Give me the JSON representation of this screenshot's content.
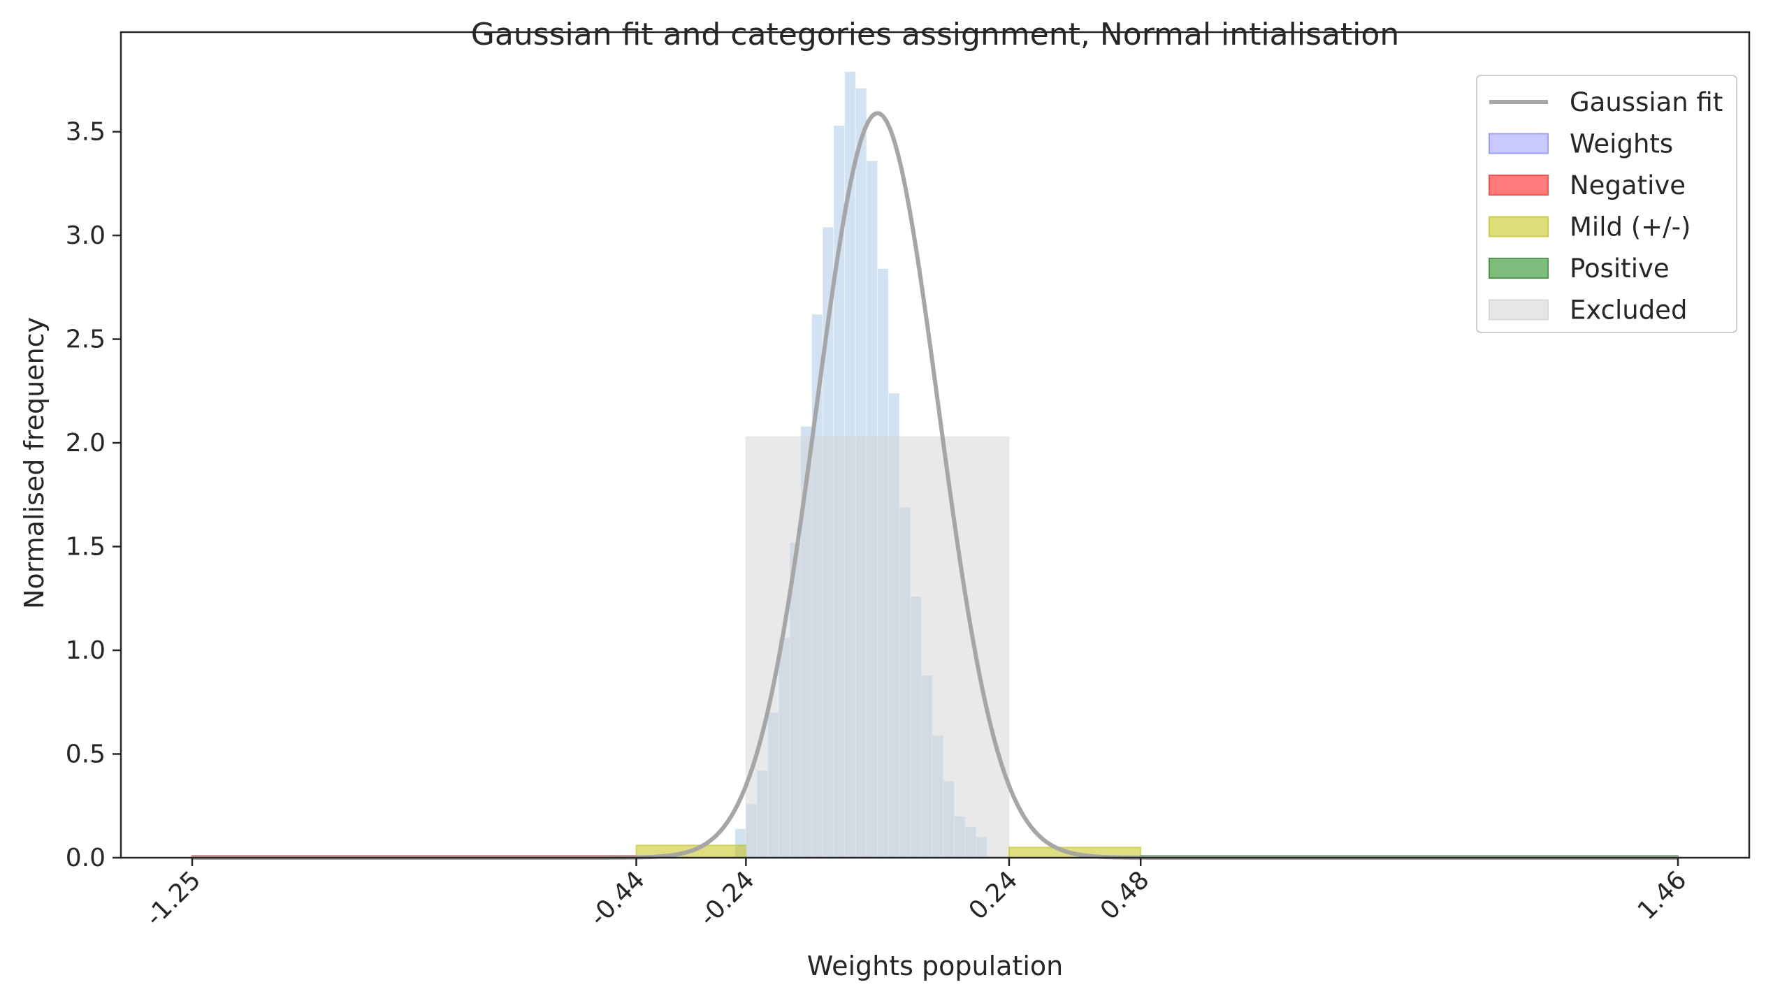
{
  "chart_data": {
    "type": "bar",
    "title": "Gaussian fit and categories assignment, Normal intialisation",
    "xlabel": "Weights population",
    "ylabel": "Normalised frequency",
    "xlim": [
      -1.38,
      1.59
    ],
    "ylim": [
      0,
      3.98
    ],
    "x_ticks": [
      -1.25,
      -0.44,
      -0.24,
      0.24,
      0.48,
      1.46
    ],
    "x_tick_labels": [
      "-1.25",
      "-0.44",
      "-0.24",
      "0.24",
      "0.48",
      "1.46"
    ],
    "y_ticks": [
      0,
      0.5,
      1.0,
      1.5,
      2.0,
      2.5,
      3.0,
      3.5
    ],
    "y_tick_labels": [
      "0.0",
      "0.5",
      "1.0",
      "1.5",
      "2.0",
      "2.5",
      "3.0",
      "3.5"
    ],
    "grid": false,
    "legend_position": "top-right",
    "histogram": {
      "name": "Weights",
      "bin_width": 0.02,
      "bins_left_edge": -0.26,
      "values": [
        0.14,
        0.26,
        0.42,
        0.7,
        1.06,
        1.52,
        2.08,
        2.62,
        3.04,
        3.53,
        3.79,
        3.71,
        3.36,
        2.84,
        2.24,
        1.69,
        1.26,
        0.88,
        0.59,
        0.37,
        0.2,
        0.15,
        0.1
      ]
    },
    "gaussian_fit": {
      "name": "Gaussian fit",
      "mean": 0.0,
      "std": 0.111,
      "amplitude": 3.59,
      "color": "#a6a6a6"
    },
    "category_bands": [
      {
        "name": "Negative",
        "x_start": -1.25,
        "x_end": -0.44,
        "height": 0.01,
        "color": "#ff0000"
      },
      {
        "name": "Mild (+/-)",
        "x_start": -0.44,
        "x_end": -0.24,
        "height": 0.06,
        "color": "#bfbf00"
      },
      {
        "name": "Excluded",
        "x_start": -0.24,
        "x_end": 0.24,
        "height": 2.03,
        "color": "#d3d3d3"
      },
      {
        "name": "Mild (+/-)",
        "x_start": 0.24,
        "x_end": 0.48,
        "height": 0.05,
        "color": "#bfbf00"
      },
      {
        "name": "Positive",
        "x_start": 0.48,
        "x_end": 1.46,
        "height": 0.01,
        "color": "#008000"
      }
    ],
    "legend": [
      {
        "label": "Gaussian fit",
        "kind": "line",
        "color": "#a6a6a6"
      },
      {
        "label": "Weights",
        "kind": "patch",
        "fill": "#c9c9ff",
        "stroke": "#9d9dff"
      },
      {
        "label": "Negative",
        "kind": "patch",
        "fill": "#ff7b7b",
        "stroke": "#ff5050"
      },
      {
        "label": "Mild (+/-)",
        "kind": "patch",
        "fill": "#dede7a",
        "stroke": "#cdcd40"
      },
      {
        "label": "Positive",
        "kind": "patch",
        "fill": "#7cbd7c",
        "stroke": "#4a9e4a"
      },
      {
        "label": "Excluded",
        "kind": "patch",
        "fill": "#e6e6e6",
        "stroke": "#d9d9d9"
      }
    ],
    "colors": {
      "histogram_fill": "#c6dcef",
      "excluded_fill": "#d3d3d3",
      "axis": "#262626"
    }
  }
}
